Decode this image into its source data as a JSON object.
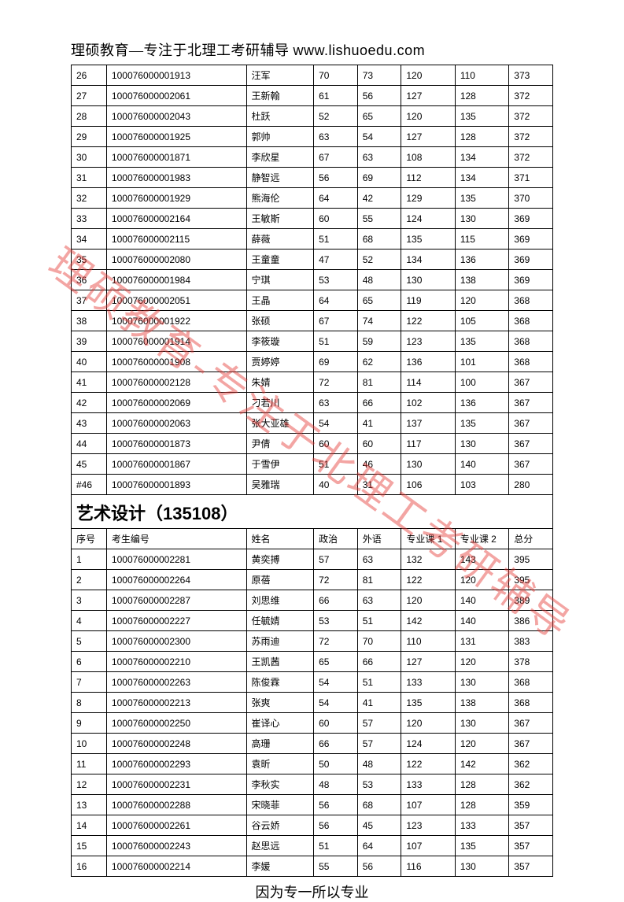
{
  "header": {
    "prefix": "理硕教育—专注于北理工考研辅导 ",
    "url": "www.lishuoedu.com"
  },
  "watermark": "理硕教育-专注于北理工考研辅导",
  "footer": "因为专一所以专业",
  "section2": {
    "title_prefix": "艺术设计（",
    "title_code": "135108",
    "title_suffix": "）",
    "headers": [
      "序号",
      "考生编号",
      "姓名",
      "政治",
      "外语",
      "专业课 1",
      "专业课 2",
      "总分"
    ]
  },
  "table1_rows": [
    [
      "26",
      "100076000001913",
      "汪军",
      "70",
      "73",
      "120",
      "110",
      "373"
    ],
    [
      "27",
      "100076000002061",
      "王新翰",
      "61",
      "56",
      "127",
      "128",
      "372"
    ],
    [
      "28",
      "100076000002043",
      "杜跃",
      "52",
      "65",
      "120",
      "135",
      "372"
    ],
    [
      "29",
      "100076000001925",
      "郭帅",
      "63",
      "54",
      "127",
      "128",
      "372"
    ],
    [
      "30",
      "100076000001871",
      "李欣星",
      "67",
      "63",
      "108",
      "134",
      "372"
    ],
    [
      "31",
      "100076000001983",
      "静智远",
      "56",
      "69",
      "112",
      "134",
      "371"
    ],
    [
      "32",
      "100076000001929",
      "熊海伦",
      "64",
      "42",
      "129",
      "135",
      "370"
    ],
    [
      "33",
      "100076000002164",
      "王敏斯",
      "60",
      "55",
      "124",
      "130",
      "369"
    ],
    [
      "34",
      "100076000002115",
      "薛薇",
      "51",
      "68",
      "135",
      "115",
      "369"
    ],
    [
      "35",
      "100076000002080",
      "王童童",
      "47",
      "52",
      "134",
      "136",
      "369"
    ],
    [
      "36",
      "100076000001984",
      "宁琪",
      "53",
      "48",
      "130",
      "138",
      "369"
    ],
    [
      "37",
      "100076000002051",
      "王晶",
      "64",
      "65",
      "119",
      "120",
      "368"
    ],
    [
      "38",
      "100076000001922",
      "张硕",
      "67",
      "74",
      "122",
      "105",
      "368"
    ],
    [
      "39",
      "100076000001914",
      "李筱璇",
      "51",
      "59",
      "123",
      "135",
      "368"
    ],
    [
      "40",
      "100076000001908",
      "贾婷婷",
      "69",
      "62",
      "136",
      "101",
      "368"
    ],
    [
      "41",
      "100076000002128",
      "朱婧",
      "72",
      "81",
      "114",
      "100",
      "367"
    ],
    [
      "42",
      "100076000002069",
      "刁若川",
      "63",
      "66",
      "102",
      "136",
      "367"
    ],
    [
      "43",
      "100076000002063",
      "张大亚雄",
      "54",
      "41",
      "137",
      "135",
      "367"
    ],
    [
      "44",
      "100076000001873",
      "尹倩",
      "60",
      "60",
      "117",
      "130",
      "367"
    ],
    [
      "45",
      "100076000001867",
      "于雪伊",
      "51",
      "46",
      "130",
      "140",
      "367"
    ],
    [
      "#46",
      "100076000001893",
      "吴雅瑞",
      "40",
      "31",
      "106",
      "103",
      "280"
    ]
  ],
  "table2_rows": [
    [
      "1",
      "100076000002281",
      "黄奕搏",
      "57",
      "63",
      "132",
      "143",
      "395"
    ],
    [
      "2",
      "100076000002264",
      "原蓓",
      "72",
      "81",
      "122",
      "120",
      "395"
    ],
    [
      "3",
      "100076000002287",
      "刘思维",
      "66",
      "63",
      "120",
      "140",
      "389"
    ],
    [
      "4",
      "100076000002227",
      "任毓婧",
      "53",
      "51",
      "142",
      "140",
      "386"
    ],
    [
      "5",
      "100076000002300",
      "苏雨迪",
      "72",
      "70",
      "110",
      "131",
      "383"
    ],
    [
      "6",
      "100076000002210",
      "王凯茜",
      "65",
      "66",
      "127",
      "120",
      "378"
    ],
    [
      "7",
      "100076000002263",
      "陈俊霖",
      "54",
      "51",
      "133",
      "130",
      "368"
    ],
    [
      "8",
      "100076000002213",
      "张爽",
      "54",
      "41",
      "135",
      "138",
      "368"
    ],
    [
      "9",
      "100076000002250",
      "崔译心",
      "60",
      "57",
      "120",
      "130",
      "367"
    ],
    [
      "10",
      "100076000002248",
      "高珊",
      "66",
      "57",
      "124",
      "120",
      "367"
    ],
    [
      "11",
      "100076000002293",
      "袁昕",
      "50",
      "48",
      "122",
      "142",
      "362"
    ],
    [
      "12",
      "100076000002231",
      "李秋实",
      "48",
      "53",
      "133",
      "128",
      "362"
    ],
    [
      "13",
      "100076000002288",
      "宋晓菲",
      "56",
      "68",
      "107",
      "128",
      "359"
    ],
    [
      "14",
      "100076000002261",
      "谷云娇",
      "56",
      "45",
      "123",
      "133",
      "357"
    ],
    [
      "15",
      "100076000002243",
      "赵思远",
      "51",
      "64",
      "107",
      "135",
      "357"
    ],
    [
      "16",
      "100076000002214",
      "李媛",
      "55",
      "56",
      "116",
      "130",
      "357"
    ]
  ]
}
